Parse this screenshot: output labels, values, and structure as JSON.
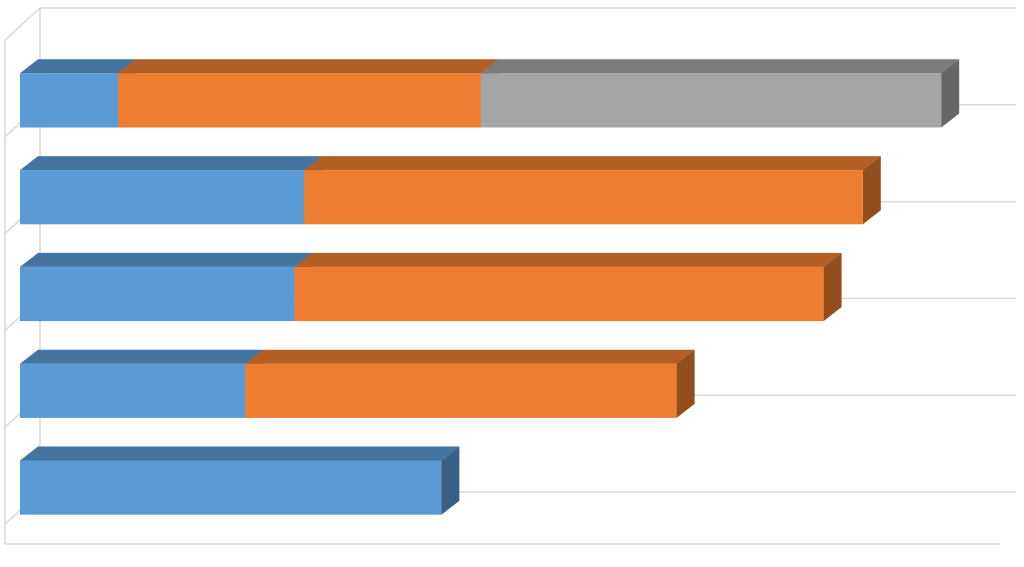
{
  "chart_data": {
    "type": "bar3d_stacked_horizontal",
    "categories": [
      null,
      null,
      null,
      null,
      null
    ],
    "xlim": [
      0,
      100
    ],
    "series": [
      {
        "color": "#5b9bd5",
        "values": [
          10,
          29,
          28,
          23,
          43
        ]
      },
      {
        "color": "#ed7d31",
        "values": [
          37,
          57,
          54,
          44,
          null
        ]
      },
      {
        "color": "#a5a5a5",
        "values": [
          47,
          null,
          null,
          null,
          null
        ]
      }
    ],
    "grid": true
  }
}
